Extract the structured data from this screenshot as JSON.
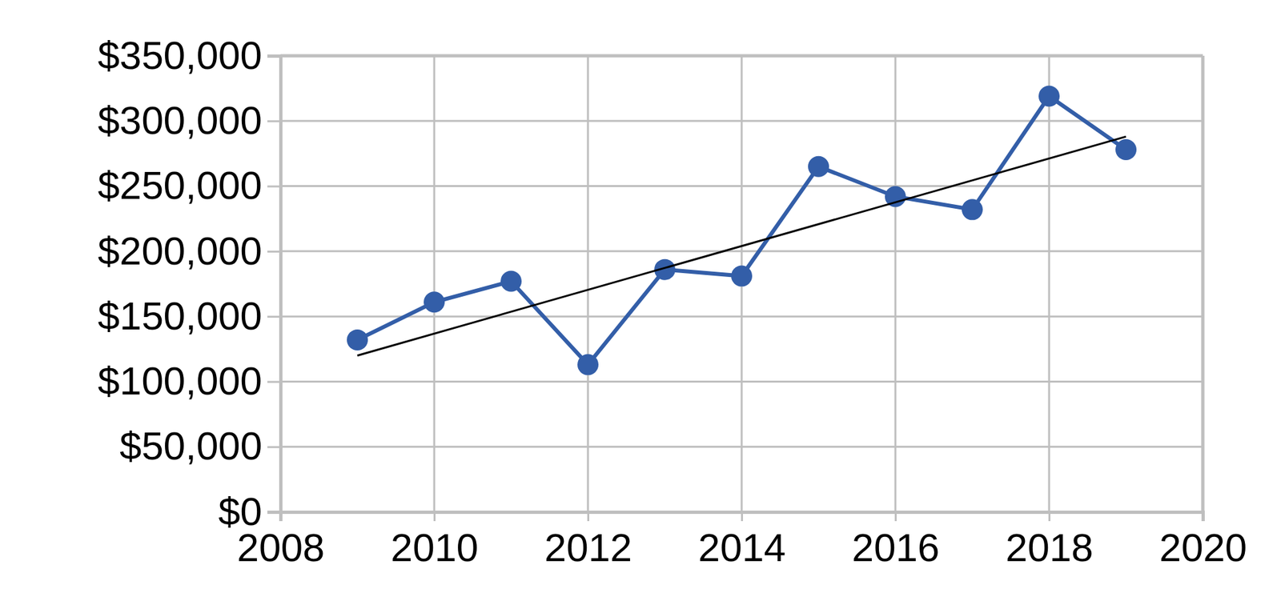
{
  "chart_data": {
    "type": "line",
    "x": [
      2009,
      2010,
      2011,
      2012,
      2013,
      2014,
      2015,
      2016,
      2017,
      2018,
      2019
    ],
    "series": [
      {
        "color": "#335ea8",
        "marker": "circle",
        "line_style": "solid",
        "values": [
          132000,
          161000,
          177000,
          113000,
          186000,
          181000,
          265000,
          242000,
          232000,
          319000,
          278000
        ]
      },
      {
        "color": "#000000",
        "marker": "none",
        "line_style": "solid",
        "x": [
          2009,
          2019
        ],
        "values": [
          120000,
          288000
        ]
      }
    ],
    "xlim": [
      2008,
      2020
    ],
    "xticks": [
      2008,
      2010,
      2012,
      2014,
      2016,
      2018,
      2020
    ],
    "ylim": [
      0,
      350000
    ],
    "yticks": [
      {
        "value": 0,
        "label": "$0"
      },
      {
        "value": 50000,
        "label": "$50,000"
      },
      {
        "value": 100000,
        "label": "$100,000"
      },
      {
        "value": 150000,
        "label": "$150,000"
      },
      {
        "value": 200000,
        "label": "$200,000"
      },
      {
        "value": 250000,
        "label": "$250,000"
      },
      {
        "value": 300000,
        "label": "$300,000"
      },
      {
        "value": 350000,
        "label": "$350,000"
      }
    ],
    "grid": true
  }
}
